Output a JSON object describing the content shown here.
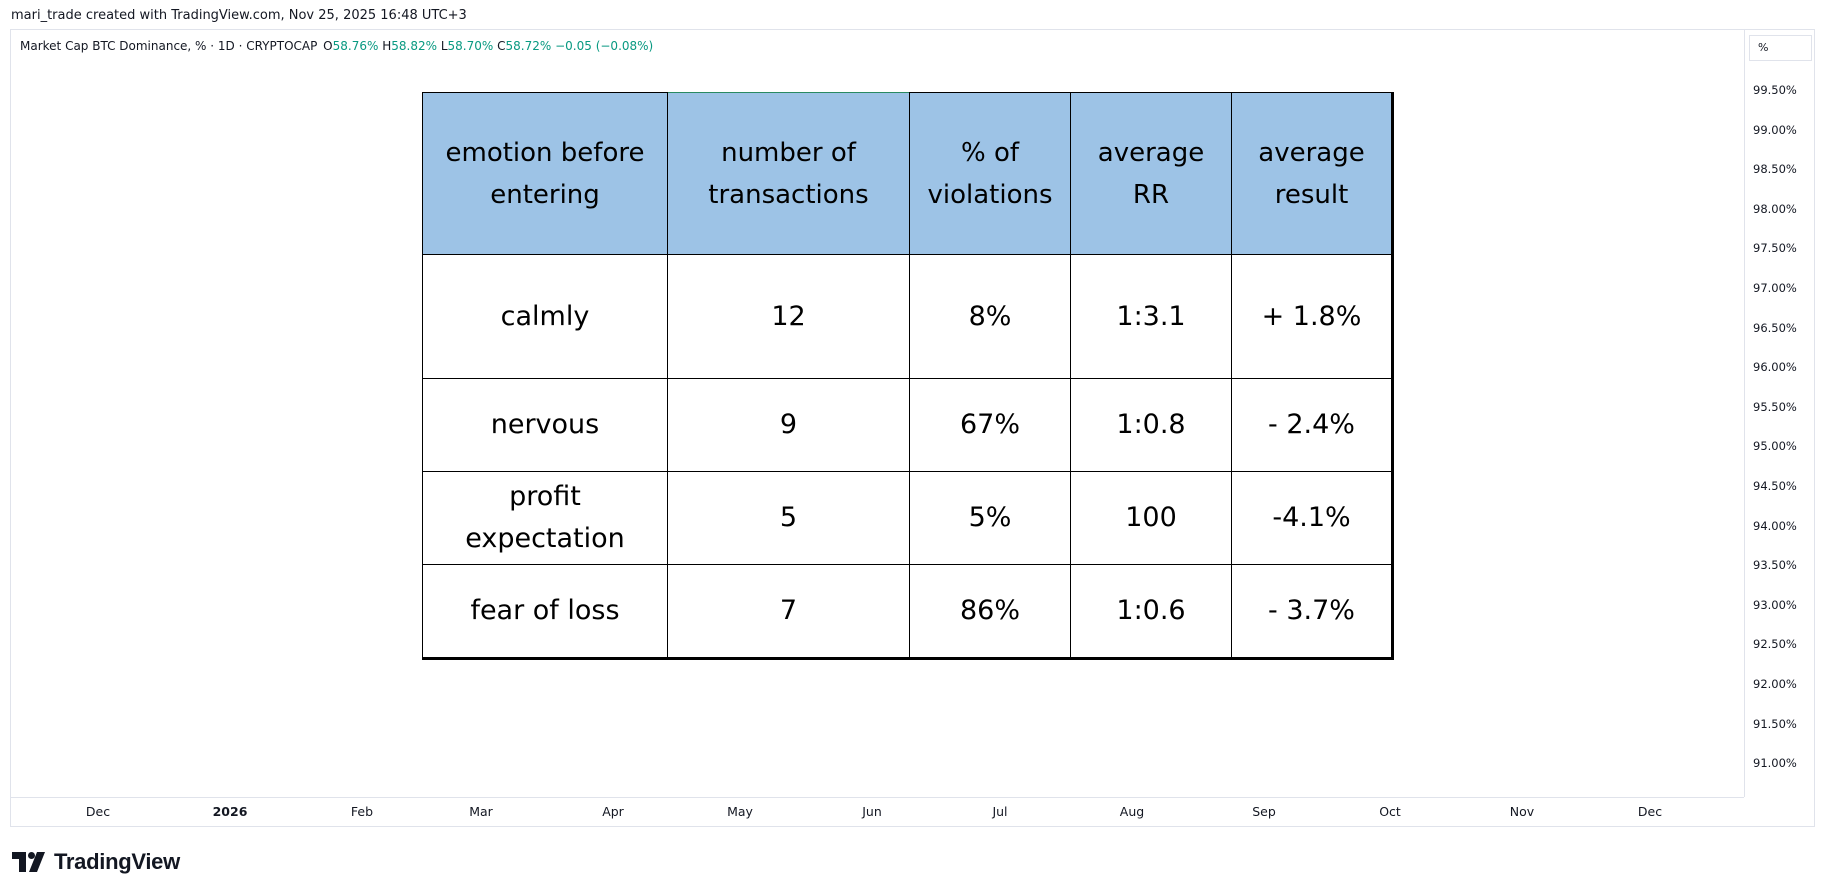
{
  "attribution": "mari_trade created with TradingView.com, Nov 25, 2025 16:48 UTC+3",
  "legend": {
    "symbol": "Market Cap BTC Dominance, % · 1D · CRYPTOCAP",
    "open_label": "O",
    "open": "58.76%",
    "high_label": "H",
    "high": "58.82%",
    "low_label": "L",
    "low": "58.70%",
    "close_label": "C",
    "close": "58.72%",
    "change": "−0.05 (−0.08%)"
  },
  "price_axis": {
    "unit_button": "%",
    "ticks": [
      "99.50%",
      "99.00%",
      "98.50%",
      "98.00%",
      "97.50%",
      "97.00%",
      "96.50%",
      "96.00%",
      "95.50%",
      "95.00%",
      "94.50%",
      "94.00%",
      "93.50%",
      "93.00%",
      "92.50%",
      "92.00%",
      "91.50%",
      "91.00%"
    ]
  },
  "time_axis": {
    "ticks": [
      "Dec",
      "2026",
      "Feb",
      "Mar",
      "Apr",
      "May",
      "Jun",
      "Jul",
      "Aug",
      "Sep",
      "Oct",
      "Nov",
      "Dec"
    ]
  },
  "table": {
    "headers": [
      "emotion before entering",
      "number of transactions",
      "% of violations",
      "average RR",
      "average result"
    ],
    "rows": [
      [
        "calmly",
        "12",
        "8%",
        "1:3.1",
        "+ 1.8%"
      ],
      [
        "nervous",
        "9",
        "67%",
        "1:0.8",
        "- 2.4%"
      ],
      [
        "profit expectation",
        "5",
        "5%",
        "100",
        "-4.1%"
      ],
      [
        "fear of loss",
        "7",
        "86%",
        "1:0.6",
        "- 3.7%"
      ]
    ],
    "header_color": "#9dc3e6"
  },
  "brand": {
    "name": "TradingView",
    "icon": "tradingview-logo-icon"
  },
  "colors": {
    "ohlc_up": "#089981",
    "grid_border": "#e0e3eb",
    "text": "#131722"
  }
}
